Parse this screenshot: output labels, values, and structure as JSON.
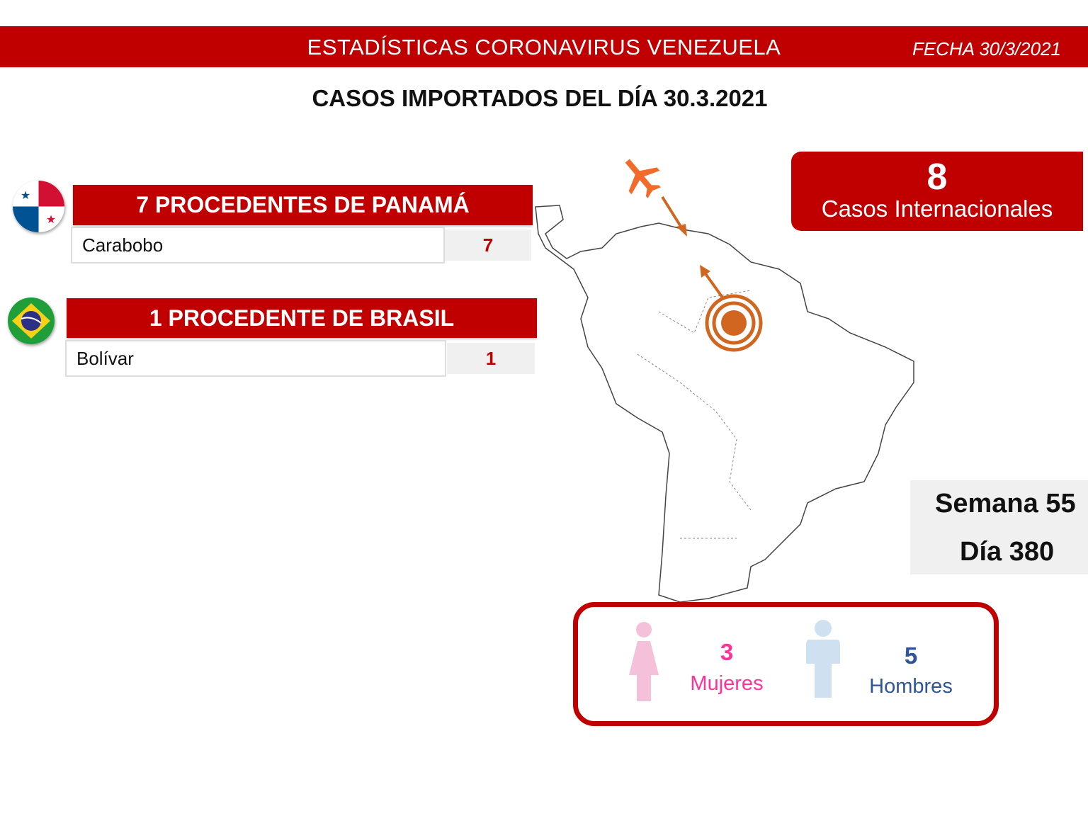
{
  "header": {
    "title": "ESTADÍSTICAS CORONAVIRUS VENEZUELA",
    "date": "FECHA 30/3/2021"
  },
  "subtitle": "CASOS IMPORTADOS DEL DÍA  30.3.2021",
  "origins": [
    {
      "title": "7 PROCEDENTES DE PANAMÁ",
      "flag": "panama-flag",
      "state": "Carabobo",
      "count": "7"
    },
    {
      "title": "1 PROCEDENTE DE BRASIL",
      "flag": "brazil-flag",
      "state": "Bolívar",
      "count": "1"
    }
  ],
  "international": {
    "count": "8",
    "label": "Casos Internacionales"
  },
  "period": {
    "week": "Semana 55",
    "day": "Día 380"
  },
  "gender": {
    "women": {
      "count": "3",
      "label": "Mujeres",
      "color": "#ff3399"
    },
    "men": {
      "count": "5",
      "label": "Hombres",
      "color": "#2f5597"
    }
  },
  "colors": {
    "brand": "#c00000",
    "arrow": "#d0661f"
  }
}
